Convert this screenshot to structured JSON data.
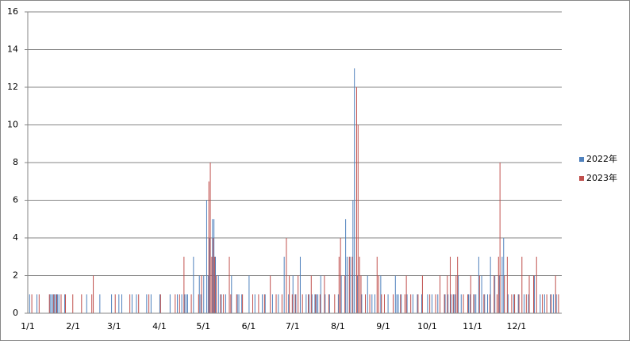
{
  "chart_data": {
    "type": "bar",
    "categories": [
      "1/1",
      null,
      null,
      null,
      null,
      null,
      null,
      null,
      null,
      null,
      null,
      null,
      null,
      null,
      null,
      null,
      null,
      null,
      null,
      null,
      null,
      null,
      null,
      null,
      null,
      null,
      null,
      null,
      null,
      null,
      null,
      "2/1",
      null,
      null,
      null,
      null,
      null,
      null,
      null,
      null,
      null,
      null,
      null,
      null,
      null,
      null,
      null,
      null,
      null,
      null,
      null,
      null,
      null,
      null,
      null,
      null,
      null,
      null,
      null,
      "3/1",
      null,
      null,
      null,
      null,
      null,
      null,
      null,
      null,
      null,
      null,
      null,
      null,
      null,
      null,
      null,
      null,
      null,
      null,
      null,
      null,
      null,
      null,
      null,
      null,
      null,
      null,
      null,
      null,
      null,
      null,
      "4/1",
      null,
      null,
      null,
      null,
      null,
      null,
      null,
      null,
      null,
      null,
      null,
      null,
      null,
      null,
      null,
      null,
      null,
      null,
      null,
      null,
      null,
      null,
      null,
      null,
      null,
      null,
      null,
      null,
      null,
      "5/1",
      null,
      null,
      null,
      null,
      null,
      null,
      null,
      null,
      null,
      null,
      null,
      null,
      null,
      null,
      null,
      null,
      null,
      null,
      null,
      null,
      null,
      null,
      null,
      null,
      null,
      null,
      null,
      null,
      null,
      null,
      "6/1",
      null,
      null,
      null,
      null,
      null,
      null,
      null,
      null,
      null,
      null,
      null,
      null,
      null,
      null,
      null,
      null,
      null,
      null,
      null,
      null,
      null,
      null,
      null,
      null,
      null,
      null,
      null,
      null,
      null,
      "7/1",
      null,
      null,
      null,
      null,
      null,
      null,
      null,
      null,
      null,
      null,
      null,
      null,
      null,
      null,
      null,
      null,
      null,
      null,
      null,
      null,
      null,
      null,
      null,
      null,
      null,
      null,
      null,
      null,
      null,
      null,
      "8/1",
      null,
      null,
      null,
      null,
      null,
      null,
      null,
      null,
      null,
      null,
      null,
      null,
      null,
      null,
      null,
      null,
      null,
      null,
      null,
      null,
      null,
      null,
      null,
      null,
      null,
      null,
      null,
      null,
      null,
      null,
      "9/1",
      null,
      null,
      null,
      null,
      null,
      null,
      null,
      null,
      null,
      null,
      null,
      null,
      null,
      null,
      null,
      null,
      null,
      null,
      null,
      null,
      null,
      null,
      null,
      null,
      null,
      null,
      null,
      null,
      null,
      "10/1",
      null,
      null,
      null,
      null,
      null,
      null,
      null,
      null,
      null,
      null,
      null,
      null,
      null,
      null,
      null,
      null,
      null,
      null,
      null,
      null,
      null,
      null,
      null,
      null,
      null,
      null,
      null,
      null,
      null,
      null,
      "11/1",
      null,
      null,
      null,
      null,
      null,
      null,
      null,
      null,
      null,
      null,
      null,
      null,
      null,
      null,
      null,
      null,
      null,
      null,
      null,
      null,
      null,
      null,
      null,
      null,
      null,
      null,
      null,
      null,
      null,
      "12/1",
      null,
      null,
      null,
      null,
      null,
      null,
      null,
      null,
      null,
      null,
      null,
      null,
      null,
      null,
      null,
      null,
      null,
      null,
      null,
      null,
      null,
      null,
      null,
      null,
      null,
      null,
      null,
      null,
      null,
      null
    ],
    "series": [
      {
        "name": "2022年",
        "color": "#4f81bd",
        "values": [
          0,
          1,
          0,
          0,
          0,
          0,
          1,
          0,
          0,
          0,
          0,
          0,
          0,
          0,
          0,
          1,
          1,
          1,
          1,
          1,
          1,
          1,
          0,
          0,
          0,
          1,
          0,
          0,
          0,
          0,
          0,
          0,
          0,
          0,
          0,
          0,
          0,
          0,
          0,
          0,
          1,
          0,
          0,
          0,
          0,
          0,
          0,
          0,
          0,
          1,
          0,
          0,
          0,
          0,
          0,
          0,
          0,
          1,
          0,
          0,
          0,
          0,
          1,
          0,
          1,
          0,
          0,
          0,
          0,
          0,
          0,
          1,
          0,
          0,
          1,
          0,
          0,
          0,
          0,
          0,
          0,
          1,
          0,
          0,
          1,
          0,
          0,
          0,
          0,
          0,
          1,
          0,
          0,
          0,
          0,
          0,
          0,
          1,
          0,
          0,
          0,
          0,
          1,
          0,
          0,
          1,
          0,
          1,
          1,
          1,
          0,
          0,
          0,
          3,
          0,
          0,
          0,
          2,
          1,
          0,
          2,
          0,
          6,
          2,
          4,
          0,
          5,
          5,
          3,
          0,
          2,
          0,
          1,
          0,
          0,
          1,
          0,
          0,
          0,
          2,
          0,
          0,
          0,
          1,
          1,
          0,
          1,
          0,
          0,
          0,
          0,
          2,
          0,
          0,
          0,
          1,
          0,
          0,
          0,
          0,
          1,
          0,
          1,
          0,
          0,
          0,
          0,
          1,
          0,
          0,
          0,
          1,
          0,
          0,
          0,
          3,
          0,
          0,
          1,
          0,
          0,
          2,
          0,
          1,
          0,
          0,
          3,
          0,
          0,
          0,
          1,
          0,
          1,
          0,
          1,
          0,
          1,
          1,
          1,
          0,
          2,
          0,
          0,
          1,
          0,
          0,
          1,
          0,
          0,
          0,
          0,
          0,
          1,
          0,
          2,
          0,
          0,
          5,
          3,
          0,
          3,
          0,
          6,
          13,
          0,
          2,
          0,
          0,
          1,
          0,
          0,
          0,
          2,
          0,
          0,
          1,
          0,
          1,
          0,
          0,
          0,
          2,
          0,
          0,
          0,
          0,
          1,
          0,
          0,
          0,
          0,
          2,
          1,
          1,
          0,
          1,
          0,
          0,
          0,
          1,
          0,
          0,
          0,
          1,
          0,
          0,
          1,
          0,
          0,
          1,
          0,
          0,
          0,
          1,
          0,
          0,
          1,
          0,
          0,
          0,
          1,
          0,
          0,
          0,
          0,
          1,
          0,
          1,
          0,
          1,
          0,
          1,
          1,
          0,
          2,
          0,
          1,
          0,
          0,
          0,
          0,
          1,
          1,
          0,
          0,
          1,
          1,
          0,
          3,
          0,
          2,
          0,
          1,
          0,
          1,
          0,
          3,
          0,
          0,
          2,
          0,
          0,
          2,
          0,
          3,
          4,
          0,
          0,
          1,
          0,
          0,
          0,
          1,
          0,
          0,
          1,
          0,
          0,
          0,
          1,
          0,
          0,
          1,
          0,
          0,
          0,
          2,
          0,
          0,
          0,
          1,
          0,
          0,
          1,
          0,
          0,
          0,
          1,
          0,
          1,
          0,
          1,
          0,
          0,
          0
        ]
      },
      {
        "name": "2023年",
        "color": "#c0504d",
        "values": [
          0,
          0,
          1,
          0,
          0,
          0,
          0,
          1,
          0,
          0,
          0,
          0,
          0,
          0,
          1,
          0,
          0,
          1,
          0,
          1,
          0,
          0,
          1,
          0,
          0,
          1,
          0,
          0,
          0,
          0,
          1,
          0,
          0,
          0,
          0,
          0,
          1,
          0,
          0,
          0,
          0,
          0,
          0,
          1,
          2,
          0,
          0,
          0,
          0,
          0,
          0,
          0,
          0,
          0,
          0,
          0,
          0,
          0,
          0,
          1,
          0,
          0,
          0,
          0,
          0,
          0,
          0,
          0,
          0,
          1,
          0,
          0,
          0,
          0,
          0,
          1,
          0,
          0,
          0,
          0,
          0,
          0,
          1,
          0,
          0,
          0,
          0,
          0,
          0,
          0,
          1,
          0,
          0,
          0,
          0,
          0,
          0,
          0,
          0,
          0,
          1,
          0,
          0,
          1,
          0,
          0,
          3,
          0,
          0,
          0,
          0,
          1,
          0,
          0,
          0,
          0,
          1,
          0,
          2,
          0,
          0,
          0,
          0,
          7,
          8,
          3,
          4,
          3,
          2,
          0,
          0,
          1,
          0,
          1,
          0,
          0,
          0,
          3,
          1,
          0,
          0,
          0,
          1,
          0,
          0,
          0,
          1,
          0,
          0,
          0,
          0,
          0,
          0,
          1,
          0,
          0,
          0,
          1,
          0,
          0,
          0,
          1,
          0,
          0,
          0,
          2,
          0,
          0,
          0,
          1,
          0,
          0,
          0,
          1,
          0,
          0,
          4,
          0,
          2,
          0,
          1,
          0,
          1,
          0,
          2,
          0,
          0,
          1,
          0,
          0,
          0,
          1,
          0,
          2,
          0,
          0,
          1,
          0,
          0,
          1,
          0,
          0,
          2,
          0,
          0,
          1,
          0,
          0,
          0,
          1,
          0,
          0,
          3,
          4,
          0,
          0,
          2,
          0,
          0,
          3,
          0,
          3,
          0,
          0,
          12,
          10,
          3,
          2,
          0,
          0,
          1,
          0,
          0,
          1,
          0,
          0,
          0,
          0,
          3,
          2,
          0,
          1,
          0,
          1,
          0,
          0,
          0,
          0,
          0,
          1,
          0,
          0,
          0,
          0,
          1,
          0,
          0,
          1,
          2,
          0,
          0,
          1,
          0,
          0,
          0,
          0,
          1,
          0,
          0,
          2,
          0,
          0,
          0,
          0,
          1,
          0,
          0,
          0,
          1,
          0,
          0,
          2,
          0,
          0,
          1,
          0,
          2,
          0,
          3,
          0,
          1,
          0,
          2,
          3,
          0,
          0,
          0,
          1,
          0,
          0,
          1,
          0,
          2,
          0,
          1,
          0,
          0,
          0,
          2,
          0,
          0,
          1,
          0,
          0,
          0,
          1,
          0,
          0,
          2,
          0,
          1,
          3,
          8,
          0,
          0,
          2,
          0,
          3,
          0,
          0,
          1,
          0,
          1,
          0,
          0,
          1,
          0,
          3,
          0,
          0,
          1,
          0,
          2,
          0,
          0,
          2,
          0,
          3,
          0,
          0,
          0,
          1,
          0,
          0,
          1,
          0,
          0,
          1,
          0,
          0,
          2,
          0,
          1,
          0,
          0
        ]
      }
    ],
    "ylim": [
      0,
      16
    ],
    "yticks": [
      0,
      2,
      4,
      6,
      8,
      10,
      12,
      14,
      16
    ],
    "grid": true,
    "legend": "right"
  }
}
